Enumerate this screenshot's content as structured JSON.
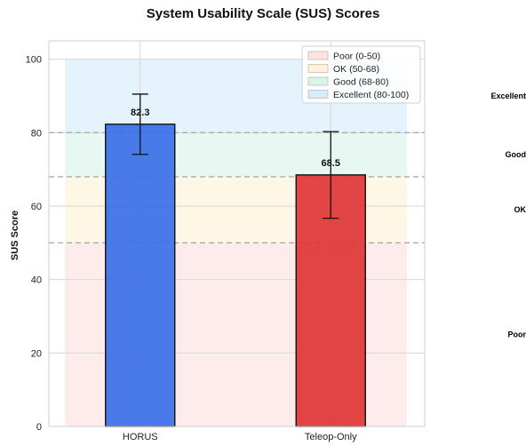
{
  "chart_data": {
    "type": "bar",
    "title": "System Usability Scale (SUS) Scores",
    "xlabel": "",
    "ylabel": "SUS Score",
    "ylim": [
      0,
      105
    ],
    "yticks": [
      0,
      20,
      40,
      60,
      80,
      100
    ],
    "grid": true,
    "legend_position": "top-right",
    "categories": [
      "HORUS",
      "Teleop-Only"
    ],
    "values": [
      82.3,
      68.5
    ],
    "errors": [
      8.2,
      11.8
    ],
    "value_labels": [
      "82.3",
      "68.5"
    ],
    "bar_colors": [
      "#3b6fe8",
      "#e03535"
    ],
    "threshold_lines": [
      50,
      68,
      80
    ],
    "bands": [
      {
        "label": "Poor (0-50)",
        "from": 0,
        "to": 50,
        "color": "#fde2e2"
      },
      {
        "label": "OK (50-68)",
        "from": 50,
        "to": 68,
        "color": "#fdf3d8"
      },
      {
        "label": "Good (68-80)",
        "from": 68,
        "to": 80,
        "color": "#d8f5ea"
      },
      {
        "label": "Excellent (80-100)",
        "from": 80,
        "to": 100,
        "color": "#d6ecfa"
      }
    ],
    "side_labels": [
      {
        "text": "Excellent",
        "value": 90
      },
      {
        "text": "Good",
        "value": 74
      },
      {
        "text": "OK",
        "value": 59
      },
      {
        "text": "Poor",
        "value": 25
      }
    ]
  }
}
